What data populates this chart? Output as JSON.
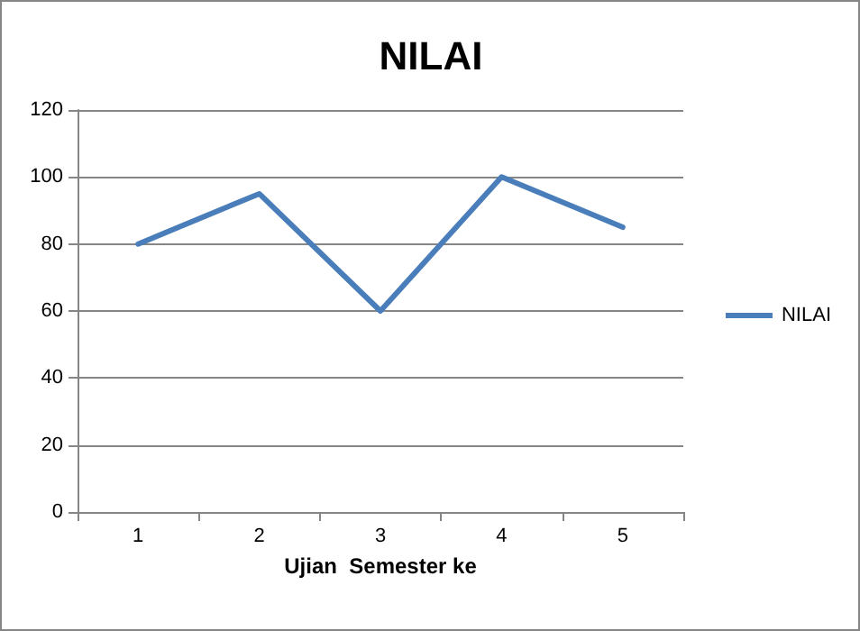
{
  "chart_data": {
    "type": "line",
    "title": "NILAI",
    "xlabel": "Ujian  Semester ke",
    "categories": [
      "1",
      "2",
      "3",
      "4",
      "5"
    ],
    "series": [
      {
        "name": "NILAI",
        "color": "#4a7ebb",
        "values": [
          80,
          95,
          60,
          100,
          85
        ]
      }
    ],
    "ylim": [
      0,
      120
    ],
    "yticks": [
      0,
      20,
      40,
      60,
      80,
      100,
      120
    ],
    "grid": "y",
    "legend": "right",
    "marker": "none",
    "line_style": "solid"
  }
}
